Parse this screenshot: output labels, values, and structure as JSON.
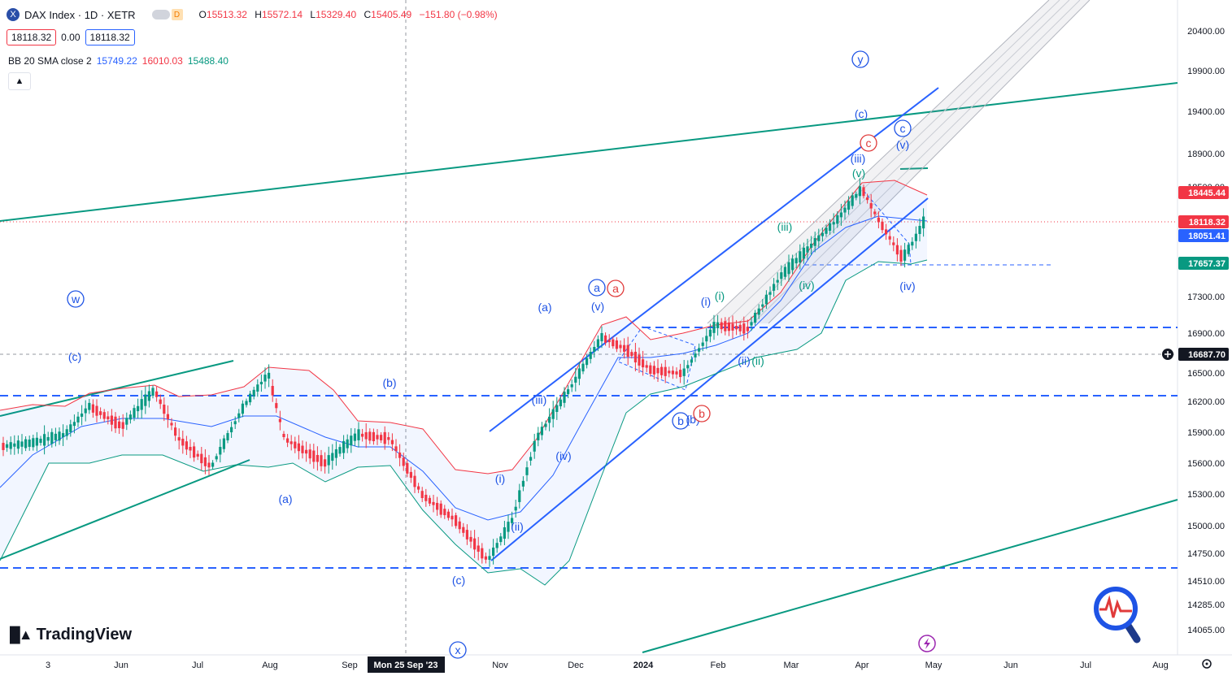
{
  "header": {
    "symbol_icon": "X",
    "title": "DAX Index · 1D · XETR",
    "interval_badge": "D",
    "ohlc": [
      {
        "key": "O",
        "value": "15513.32"
      },
      {
        "key": "H",
        "value": "15572.14"
      },
      {
        "key": "L",
        "value": "15329.40"
      },
      {
        "key": "C",
        "value": "15405.49"
      },
      {
        "key": "",
        "value": "−151.80 (−0.98%)"
      }
    ],
    "bid": "18118.32",
    "spread": "0.00",
    "ask": "18118.32"
  },
  "indicator": {
    "name": "BB 20 SMA close 2",
    "basis": "15749.22",
    "upper": "16010.03",
    "lower": "15488.40"
  },
  "collapse_icon": "chevron-up-icon",
  "logo_text": "TradingView",
  "colors": {
    "up": "#089981",
    "down": "#f23645",
    "upper_band": "#f23645",
    "lower_band": "#089981",
    "basis": "#2962ff",
    "channel_blue": "#2962ff",
    "channel_green": "#089981",
    "wave_blue": "#1e53e5",
    "wave_green": "#089981",
    "wave_red": "#e03a3a"
  },
  "chart_data": {
    "type": "candlestick",
    "title": "DAX Index · 1D · XETR",
    "y_ticks": [
      20400,
      19900,
      19400,
      18900,
      18500,
      17300,
      16900,
      16500,
      16200,
      15900,
      15600,
      15300,
      15000,
      14750,
      14510,
      14285,
      14065
    ],
    "y_tick_labels": [
      "20400.00",
      "19900.00",
      "19400.00",
      "18900.00",
      "18500.00",
      "17300.00",
      "16900.00",
      "16500.00",
      "16200.00",
      "15900.00",
      "15600.00",
      "15300.00",
      "15000.00",
      "14750.00",
      "14510.00",
      "14285.00",
      "14065.00"
    ],
    "x_tick_labels": [
      "3",
      "Jun",
      "Jul",
      "Aug",
      "Sep",
      "Mon 25 Sep '23",
      "Nov",
      "Dec",
      "2024",
      "Feb",
      "Mar",
      "Apr",
      "May",
      "Jun",
      "Jul",
      "Aug"
    ],
    "price_labels": [
      {
        "text": "18445.44",
        "value": 18445.44,
        "color": "#f23645"
      },
      {
        "text": "18118.32",
        "value": 18118.32,
        "color": "#f23645"
      },
      {
        "text": "18051.41",
        "value": 18051.41,
        "color": "#2962ff"
      },
      {
        "text": "17657.37",
        "value": 17657.37,
        "color": "#089981"
      },
      {
        "text": "16687.70",
        "value": 16687.7,
        "color": "#131722"
      }
    ],
    "crosshair": {
      "date": "Mon 25 Sep '23",
      "price": 16687.7
    },
    "levels": [
      18118.32,
      16900,
      16280,
      14640
    ],
    "wave_labels": [
      {
        "text": "w",
        "circle": true,
        "color": "blue"
      },
      {
        "text": "(c)",
        "circle": false,
        "color": "blue"
      },
      {
        "text": "(b)",
        "circle": false,
        "color": "blue"
      },
      {
        "text": "(a)",
        "circle": false,
        "color": "blue"
      },
      {
        "text": "(c)",
        "circle": false,
        "color": "blue"
      },
      {
        "text": "x",
        "circle": true,
        "color": "blue"
      },
      {
        "text": "(i)",
        "circle": false,
        "color": "blue"
      },
      {
        "text": "(ii)",
        "circle": false,
        "color": "blue"
      },
      {
        "text": "(iii)",
        "circle": false,
        "color": "blue"
      },
      {
        "text": "(iv)",
        "circle": false,
        "color": "blue"
      },
      {
        "text": "(v)",
        "circle": false,
        "color": "blue"
      },
      {
        "text": "(a)",
        "circle": false,
        "color": "blue"
      },
      {
        "text": "a",
        "circle": true,
        "color": "blue"
      },
      {
        "text": "a",
        "circle": true,
        "color": "red"
      },
      {
        "text": "b",
        "circle": true,
        "color": "blue"
      },
      {
        "text": "(b)",
        "circle": false,
        "color": "blue"
      },
      {
        "text": "b",
        "circle": true,
        "color": "red"
      },
      {
        "text": "(i)",
        "circle": false,
        "color": "blue"
      },
      {
        "text": "(i)",
        "circle": false,
        "color": "green"
      },
      {
        "text": "(ii)",
        "circle": false,
        "color": "blue"
      },
      {
        "text": "(ii)",
        "circle": false,
        "color": "green"
      },
      {
        "text": "(iii)",
        "circle": false,
        "color": "green"
      },
      {
        "text": "(iv)",
        "circle": false,
        "color": "green"
      },
      {
        "text": "(v)",
        "circle": false,
        "color": "green"
      },
      {
        "text": "(iii)",
        "circle": false,
        "color": "blue"
      },
      {
        "text": "c",
        "circle": true,
        "color": "red"
      },
      {
        "text": "(c)",
        "circle": false,
        "color": "blue"
      },
      {
        "text": "y",
        "circle": true,
        "color": "blue"
      },
      {
        "text": "c",
        "circle": true,
        "color": "blue"
      },
      {
        "text": "(v)",
        "circle": false,
        "color": "blue"
      },
      {
        "text": "(iv)",
        "circle": false,
        "color": "blue"
      }
    ]
  }
}
